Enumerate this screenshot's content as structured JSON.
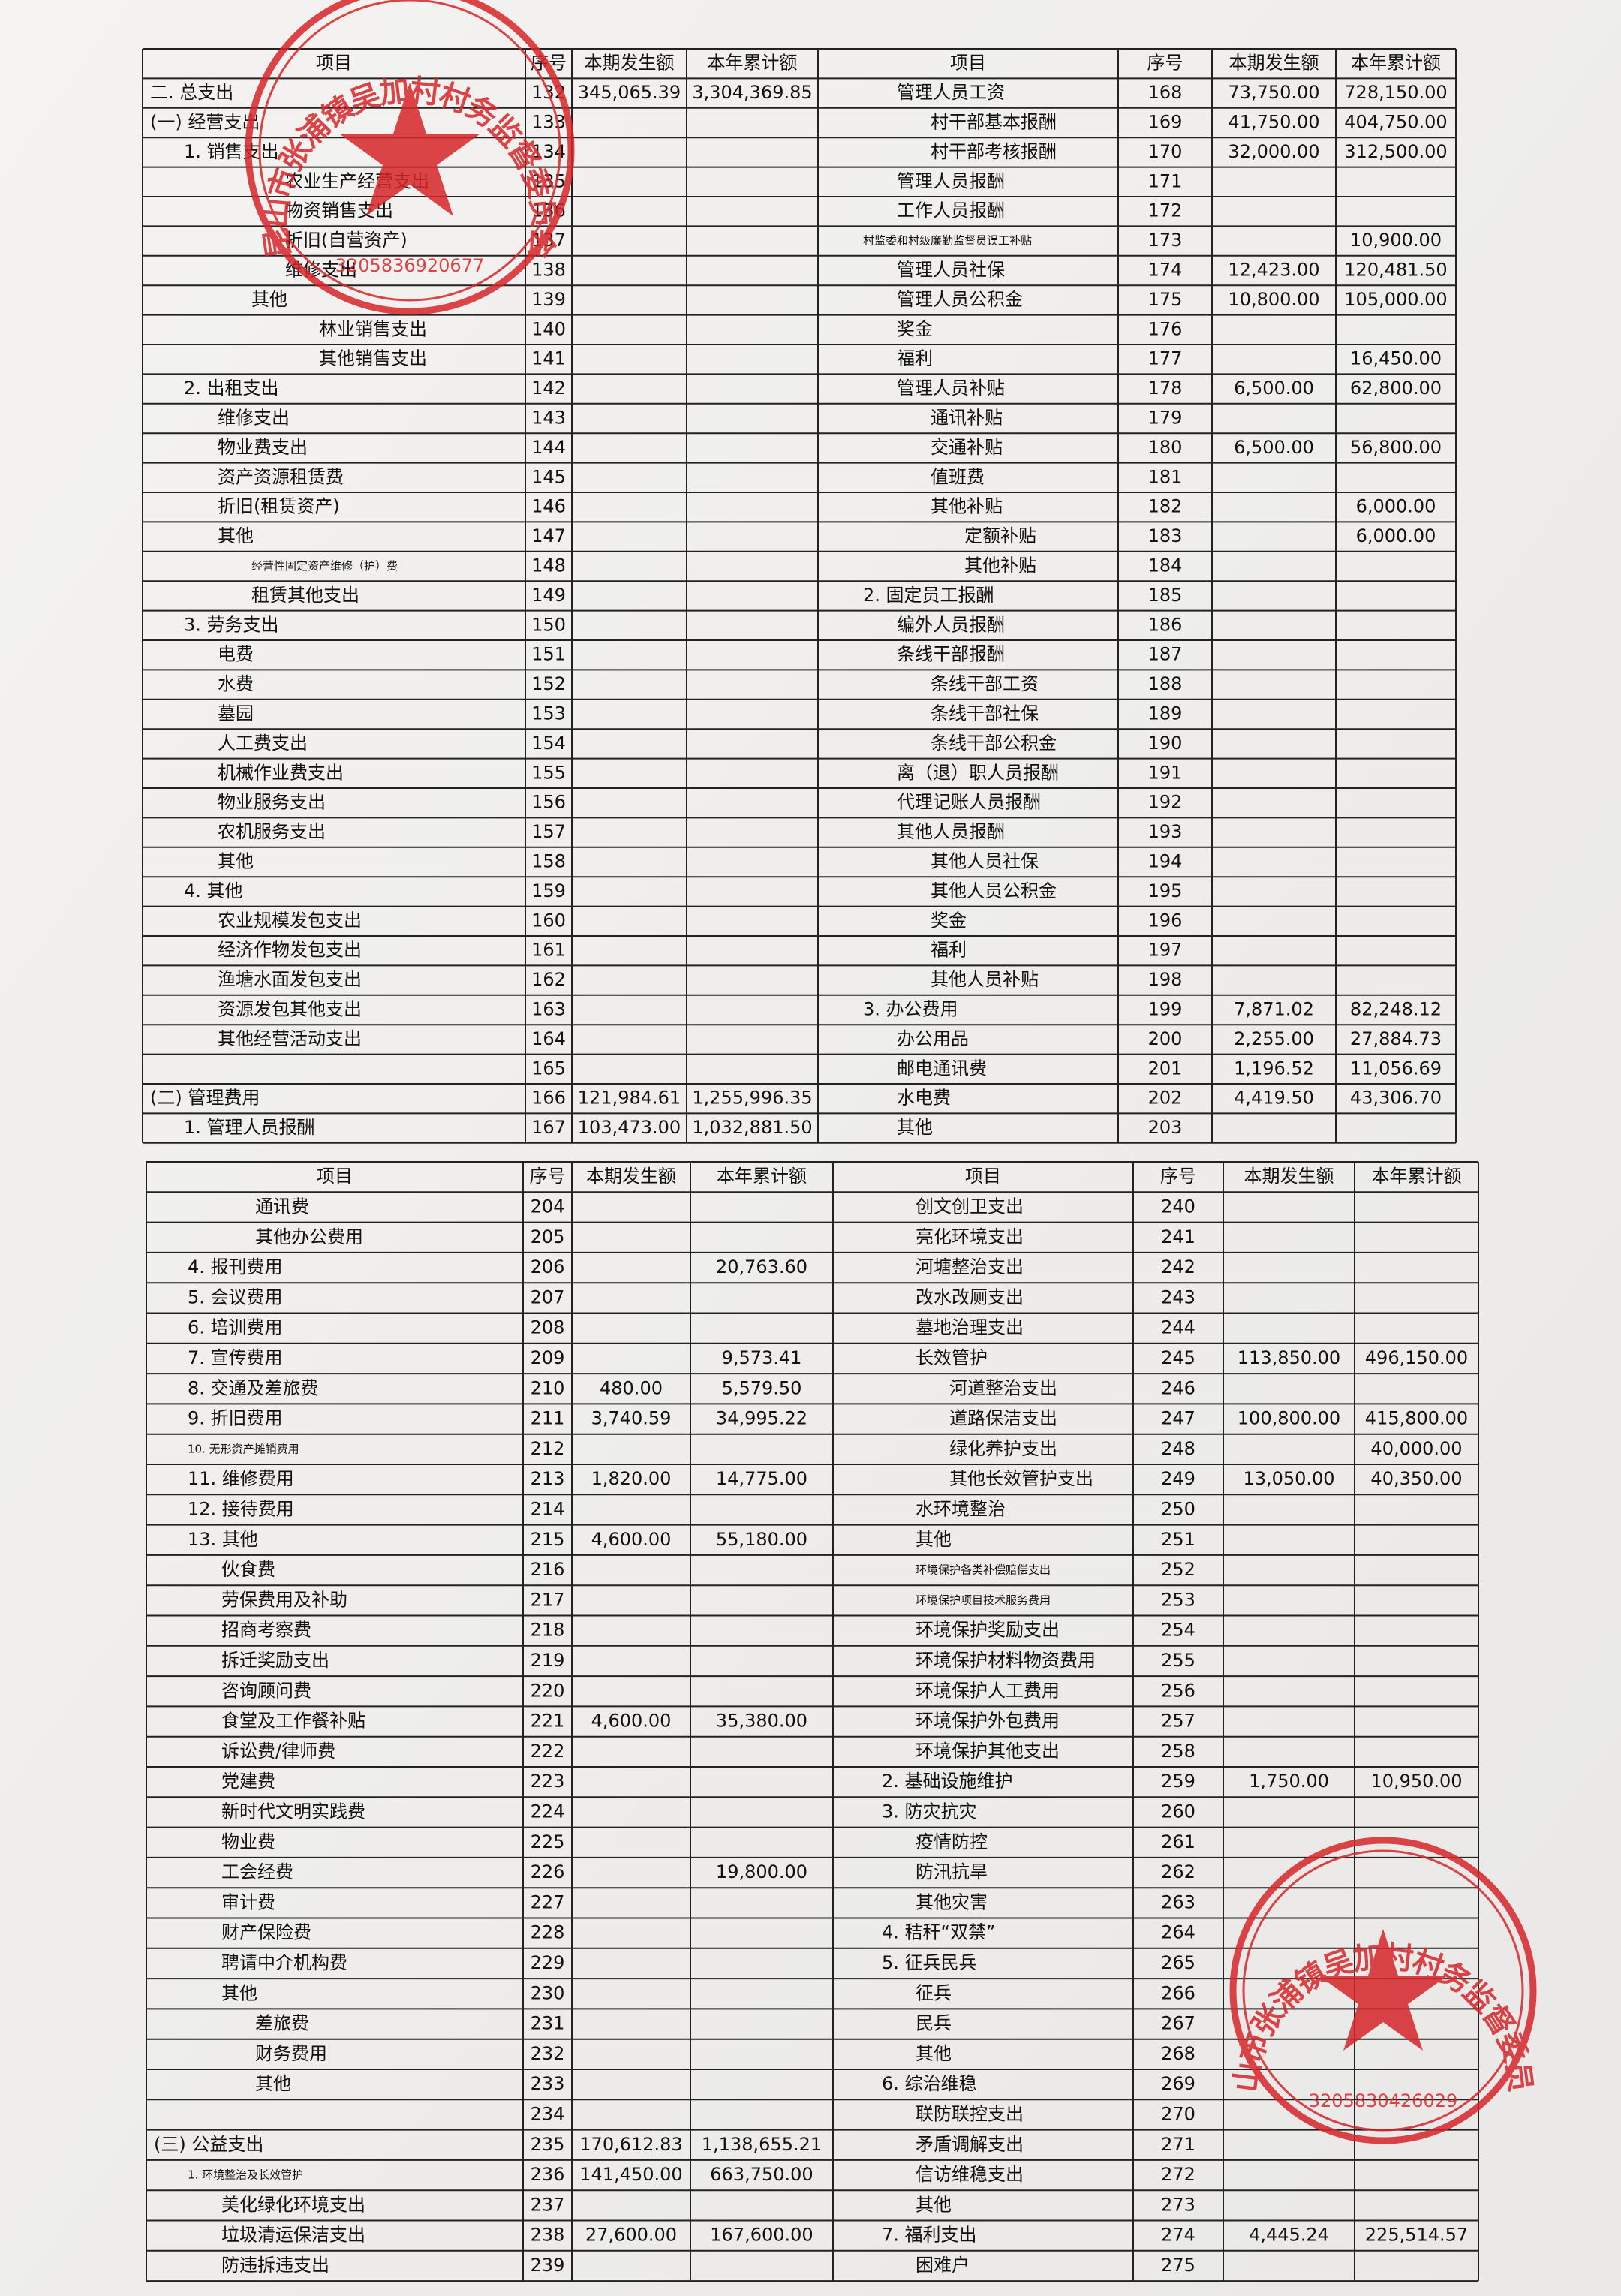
{
  "sheets": [
    {
      "left": {
        "header": [
          "项目",
          "序号",
          "本期发生额",
          "本年累计额"
        ],
        "rows": [
          [
            "二. 总支出",
            132,
            "345,065.39",
            "3,304,369.85"
          ],
          [
            "(一) 经营支出",
            133,
            null,
            null
          ],
          [
            "1. 销售支出",
            134,
            null,
            null
          ],
          [
            "农业生产经营支出",
            135,
            null,
            null
          ],
          [
            "物资销售支出",
            136,
            null,
            null
          ],
          [
            "折旧(自营资产)",
            137,
            null,
            null
          ],
          [
            "维修支出",
            138,
            null,
            null
          ],
          [
            "其他",
            139,
            null,
            null
          ],
          [
            "林业销售支出",
            140,
            null,
            null
          ],
          [
            "其他销售支出",
            141,
            null,
            null
          ],
          [
            "2. 出租支出",
            142,
            null,
            null
          ],
          [
            "维修支出",
            143,
            null,
            null
          ],
          [
            "物业费支出",
            144,
            null,
            null
          ],
          [
            "资产资源租赁费",
            145,
            null,
            null
          ],
          [
            "折旧(租赁资产)",
            146,
            null,
            null
          ],
          [
            "其他",
            147,
            null,
            null
          ],
          [
            "经营性固定资产维修（护）费",
            148,
            null,
            null
          ],
          [
            "租赁其他支出",
            149,
            null,
            null
          ],
          [
            "3. 劳务支出",
            150,
            null,
            null
          ],
          [
            "电费",
            151,
            null,
            null
          ],
          [
            "水费",
            152,
            null,
            null
          ],
          [
            "墓园",
            153,
            null,
            null
          ],
          [
            "人工费支出",
            154,
            null,
            null
          ],
          [
            "机械作业费支出",
            155,
            null,
            null
          ],
          [
            "物业服务支出",
            156,
            null,
            null
          ],
          [
            "农机服务支出",
            157,
            null,
            null
          ],
          [
            "其他",
            158,
            null,
            null
          ],
          [
            "4. 其他",
            159,
            null,
            null
          ],
          [
            "农业规模发包支出",
            160,
            null,
            null
          ],
          [
            "经济作物发包支出",
            161,
            null,
            null
          ],
          [
            "渔塘水面发包支出",
            162,
            null,
            null
          ],
          [
            "资源发包其他支出",
            163,
            null,
            null
          ],
          [
            "其他经营活动支出",
            164,
            null,
            null
          ],
          [
            null,
            165,
            null,
            null
          ],
          [
            "(二) 管理费用",
            166,
            "121,984.61",
            "1,255,996.35"
          ],
          [
            "1. 管理人员报酬",
            167,
            "103,473.00",
            "1,032,881.50"
          ]
        ]
      },
      "right": {
        "header": [
          "项目",
          "序号",
          "本期发生额",
          "本年累计额"
        ],
        "rows": [
          [
            "管理人员工资",
            168,
            "73,750.00",
            "728,150.00"
          ],
          [
            "村干部基本报酬",
            169,
            "41,750.00",
            "404,750.00"
          ],
          [
            "村干部考核报酬",
            170,
            "32,000.00",
            "312,500.00"
          ],
          [
            "管理人员报酬",
            171,
            null,
            null
          ],
          [
            "工作人员报酬",
            172,
            null,
            null
          ],
          [
            "村监委和村级廉勤监督员误工补贴",
            173,
            null,
            "10,900.00"
          ],
          [
            "管理人员社保",
            174,
            "12,423.00",
            "120,481.50"
          ],
          [
            "管理人员公积金",
            175,
            "10,800.00",
            "105,000.00"
          ],
          [
            "奖金",
            176,
            null,
            null
          ],
          [
            "福利",
            177,
            null,
            "16,450.00"
          ],
          [
            "管理人员补贴",
            178,
            "6,500.00",
            "62,800.00"
          ],
          [
            "通讯补贴",
            179,
            null,
            null
          ],
          [
            "交通补贴",
            180,
            "6,500.00",
            "56,800.00"
          ],
          [
            "值班费",
            181,
            null,
            null
          ],
          [
            "其他补贴",
            182,
            null,
            "6,000.00"
          ],
          [
            "定额补贴",
            183,
            null,
            "6,000.00"
          ],
          [
            "其他补贴",
            184,
            null,
            null
          ],
          [
            "2. 固定员工报酬",
            185,
            null,
            null
          ],
          [
            "编外人员报酬",
            186,
            null,
            null
          ],
          [
            "条线干部报酬",
            187,
            null,
            null
          ],
          [
            "条线干部工资",
            188,
            null,
            null
          ],
          [
            "条线干部社保",
            189,
            null,
            null
          ],
          [
            "条线干部公积金",
            190,
            null,
            null
          ],
          [
            "离（退）职人员报酬",
            191,
            null,
            null
          ],
          [
            "代理记账人员报酬",
            192,
            null,
            null
          ],
          [
            "其他人员报酬",
            193,
            null,
            null
          ],
          [
            "其他人员社保",
            194,
            null,
            null
          ],
          [
            "其他人员公积金",
            195,
            null,
            null
          ],
          [
            "奖金",
            196,
            null,
            null
          ],
          [
            "福利",
            197,
            null,
            null
          ],
          [
            "其他人员补贴",
            198,
            null,
            null
          ],
          [
            "3. 办公费用",
            199,
            "7,871.02",
            "82,248.12"
          ],
          [
            "办公用品",
            200,
            "2,255.00",
            "27,884.73"
          ],
          [
            "邮电通讯费",
            201,
            "1,196.52",
            "11,056.69"
          ],
          [
            "水电费",
            202,
            "4,419.50",
            "43,306.70"
          ],
          [
            "其他",
            203,
            null,
            null
          ]
        ]
      }
    },
    {
      "left": {
        "header": [
          "项目",
          "序号",
          "本期发生额",
          "本年累计额"
        ],
        "rows": [
          [
            "通讯费",
            204,
            null,
            null
          ],
          [
            "其他办公费用",
            205,
            null,
            null
          ],
          [
            "4. 报刊费用",
            206,
            null,
            "20,763.60"
          ],
          [
            "5. 会议费用",
            207,
            null,
            null
          ],
          [
            "6. 培训费用",
            208,
            null,
            null
          ],
          [
            "7. 宣传费用",
            209,
            null,
            "9,573.41"
          ],
          [
            "8. 交通及差旅费",
            210,
            "480.00",
            "5,579.50"
          ],
          [
            "9. 折旧费用",
            211,
            "3,740.59",
            "34,995.22"
          ],
          [
            "10. 无形资产摊销费用",
            212,
            null,
            null
          ],
          [
            "11. 维修费用",
            213,
            "1,820.00",
            "14,775.00"
          ],
          [
            "12. 接待费用",
            214,
            null,
            null
          ],
          [
            "13. 其他",
            215,
            "4,600.00",
            "55,180.00"
          ],
          [
            "伙食费",
            216,
            null,
            null
          ],
          [
            "劳保费用及补助",
            217,
            null,
            null
          ],
          [
            "招商考察费",
            218,
            null,
            null
          ],
          [
            "拆迁奖励支出",
            219,
            null,
            null
          ],
          [
            "咨询顾问费",
            220,
            null,
            null
          ],
          [
            "食堂及工作餐补贴",
            221,
            "4,600.00",
            "35,380.00"
          ],
          [
            "诉讼费/律师费",
            222,
            null,
            null
          ],
          [
            "党建费",
            223,
            null,
            null
          ],
          [
            "新时代文明实践费",
            224,
            null,
            null
          ],
          [
            "物业费",
            225,
            null,
            null
          ],
          [
            "工会经费",
            226,
            null,
            "19,800.00"
          ],
          [
            "审计费",
            227,
            null,
            null
          ],
          [
            "财产保险费",
            228,
            null,
            null
          ],
          [
            "聘请中介机构费",
            229,
            null,
            null
          ],
          [
            "其他",
            230,
            null,
            null
          ],
          [
            "差旅费",
            231,
            null,
            null
          ],
          [
            "财务费用",
            232,
            null,
            null
          ],
          [
            "其他",
            233,
            null,
            null
          ],
          [
            null,
            234,
            null,
            null
          ],
          [
            "(三) 公益支出",
            235,
            "170,612.83",
            "1,138,655.21"
          ],
          [
            "1. 环境整治及长效管护",
            236,
            "141,450.00",
            "663,750.00"
          ],
          [
            "美化绿化环境支出",
            237,
            null,
            null
          ],
          [
            "垃圾清运保洁支出",
            238,
            "27,600.00",
            "167,600.00"
          ],
          [
            "防违拆违支出",
            239,
            null,
            null
          ]
        ]
      },
      "right": {
        "header": [
          "项目",
          "序号",
          "本期发生额",
          "本年累计额"
        ],
        "rows": [
          [
            "创文创卫支出",
            240,
            null,
            null
          ],
          [
            "亮化环境支出",
            241,
            null,
            null
          ],
          [
            "河塘整治支出",
            242,
            null,
            null
          ],
          [
            "改水改厕支出",
            243,
            null,
            null
          ],
          [
            "墓地治理支出",
            244,
            null,
            null
          ],
          [
            "长效管护",
            245,
            "113,850.00",
            "496,150.00"
          ],
          [
            "河道整治支出",
            246,
            null,
            null
          ],
          [
            "道路保洁支出",
            247,
            "100,800.00",
            "415,800.00"
          ],
          [
            "绿化养护支出",
            248,
            null,
            "40,000.00"
          ],
          [
            "其他长效管护支出",
            249,
            "13,050.00",
            "40,350.00"
          ],
          [
            "水环境整治",
            250,
            null,
            null
          ],
          [
            "其他",
            251,
            null,
            null
          ],
          [
            "环境保护各类补偿赔偿支出",
            252,
            null,
            null
          ],
          [
            "环境保护项目技术服务费用",
            253,
            null,
            null
          ],
          [
            "环境保护奖励支出",
            254,
            null,
            null
          ],
          [
            "环境保护材料物资费用",
            255,
            null,
            null
          ],
          [
            "环境保护人工费用",
            256,
            null,
            null
          ],
          [
            "环境保护外包费用",
            257,
            null,
            null
          ],
          [
            "环境保护其他支出",
            258,
            null,
            null
          ],
          [
            "2. 基础设施维护",
            259,
            "1,750.00",
            "10,950.00"
          ],
          [
            "3. 防灾抗灾",
            260,
            null,
            null
          ],
          [
            "疫情防控",
            261,
            null,
            null
          ],
          [
            "防汛抗旱",
            262,
            null,
            null
          ],
          [
            "其他灾害",
            263,
            null,
            null
          ],
          [
            "4. 秸秆“双禁”",
            264,
            null,
            null
          ],
          [
            "5. 征兵民兵",
            265,
            null,
            null
          ],
          [
            "征兵",
            266,
            null,
            null
          ],
          [
            "民兵",
            267,
            null,
            null
          ],
          [
            "其他",
            268,
            null,
            null
          ],
          [
            "6. 综治维稳",
            269,
            null,
            null
          ],
          [
            "联防联控支出",
            270,
            null,
            null
          ],
          [
            "矛盾调解支出",
            271,
            null,
            null
          ],
          [
            "信访维稳支出",
            272,
            null,
            null
          ],
          [
            "其他",
            273,
            null,
            null
          ],
          [
            "7. 福利支出",
            274,
            "4,445.24",
            "225,514.57"
          ],
          [
            "困难户",
            275,
            null,
            null
          ]
        ]
      }
    }
  ],
  "stamps": [
    {
      "text": "昆山市张浦镇吴加村村务监督委员会",
      "code": "3205836920677"
    },
    {
      "text": "昆山市张浦镇吴加村村务监督委员会",
      "code": "3205830426029"
    }
  ]
}
